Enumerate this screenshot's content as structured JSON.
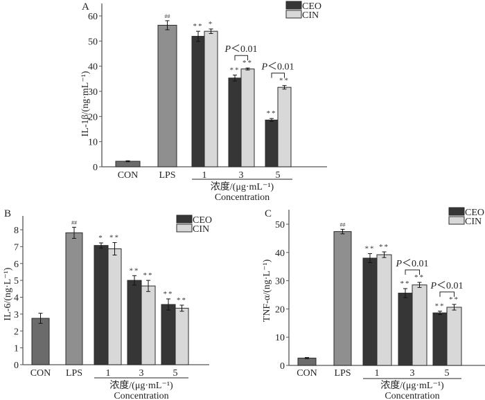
{
  "figure": {
    "colors": {
      "CON": "#6b6b6b",
      "LPS": "#8f8f8f",
      "CEO": "#363636",
      "CIN": "#d8d8d8",
      "axis": "#555555",
      "outline": "#2a2a2a"
    }
  },
  "chart_data": [
    {
      "panel": "A",
      "type": "bar",
      "title": "",
      "ylabel": "IL-1β/(ng·mL⁻¹)",
      "xlabel_cn": "浓度/(μg·mL⁻¹)",
      "xlabel_en": "Concentration",
      "ylim": [
        0,
        65
      ],
      "yticks": [
        0,
        10,
        20,
        30,
        40,
        50,
        60
      ],
      "legend": [
        "CEO",
        "CIN"
      ],
      "legend_position": "top-right",
      "controls": [
        {
          "label": "CON",
          "value": 2.2,
          "error": 0.2,
          "mark": ""
        },
        {
          "label": "LPS",
          "value": 56.3,
          "error": 1.8,
          "mark": "##"
        }
      ],
      "categories": [
        "1",
        "3",
        "5"
      ],
      "series": [
        {
          "name": "CEO",
          "values": [
            51.9,
            35.3,
            18.6
          ],
          "errors": [
            2.0,
            1.2,
            0.6
          ],
          "marks": [
            "**",
            "**",
            "**"
          ]
        },
        {
          "name": "CIN",
          "values": [
            53.9,
            38.9,
            31.6
          ],
          "errors": [
            0.9,
            0.4,
            0.7
          ],
          "marks": [
            "*",
            "**",
            "**"
          ]
        }
      ],
      "annotations": [
        {
          "group": "3",
          "text": "P<0.01"
        },
        {
          "group": "5",
          "text": "P<0.01"
        }
      ]
    },
    {
      "panel": "B",
      "type": "bar",
      "title": "",
      "ylabel": "IL-6/(ng·L⁻¹)",
      "xlabel_cn": "浓度/(μg·mL⁻¹)",
      "xlabel_en": "Concentration",
      "ylim": [
        0,
        8.8
      ],
      "yticks": [
        0,
        1,
        2,
        3,
        4,
        5,
        6,
        7,
        8
      ],
      "legend": [
        "CEO",
        "CIN"
      ],
      "legend_position": "top-right",
      "controls": [
        {
          "label": "CON",
          "value": 2.75,
          "error": 0.3,
          "mark": ""
        },
        {
          "label": "LPS",
          "value": 7.82,
          "error": 0.33,
          "mark": "##"
        }
      ],
      "categories": [
        "1",
        "3",
        "5"
      ],
      "series": [
        {
          "name": "CEO",
          "values": [
            7.07,
            5.0,
            3.57
          ],
          "errors": [
            0.15,
            0.28,
            0.33
          ],
          "marks": [
            "*",
            "**",
            "**"
          ]
        },
        {
          "name": "CIN",
          "values": [
            6.87,
            4.67,
            3.35
          ],
          "errors": [
            0.37,
            0.33,
            0.18
          ],
          "marks": [
            "**",
            "**",
            "**"
          ]
        }
      ],
      "annotations": []
    },
    {
      "panel": "C",
      "type": "bar",
      "title": "",
      "ylabel": "TNF-α/(ng·L⁻¹)",
      "xlabel_cn": "浓度/(μg·mL⁻¹)",
      "xlabel_en": "Concentration",
      "ylim": [
        0,
        55
      ],
      "yticks": [
        0,
        10,
        20,
        30,
        40,
        50
      ],
      "legend": [
        "CEO",
        "CIN"
      ],
      "legend_position": "top-right",
      "controls": [
        {
          "label": "CON",
          "value": 2.6,
          "error": 0.2,
          "mark": ""
        },
        {
          "label": "LPS",
          "value": 47.4,
          "error": 0.8,
          "mark": "##"
        }
      ],
      "categories": [
        "1",
        "3",
        "5"
      ],
      "series": [
        {
          "name": "CEO",
          "values": [
            38.0,
            25.6,
            18.6
          ],
          "errors": [
            1.6,
            1.6,
            0.6
          ],
          "marks": [
            "**",
            "**",
            "**"
          ]
        },
        {
          "name": "CIN",
          "values": [
            39.2,
            28.5,
            20.6
          ],
          "errors": [
            1.0,
            0.9,
            1.0
          ],
          "marks": [
            "**",
            "**",
            "**"
          ]
        }
      ],
      "annotations": [
        {
          "group": "3",
          "text": "P<0.01"
        },
        {
          "group": "5",
          "text": "P<0.01"
        }
      ]
    }
  ]
}
